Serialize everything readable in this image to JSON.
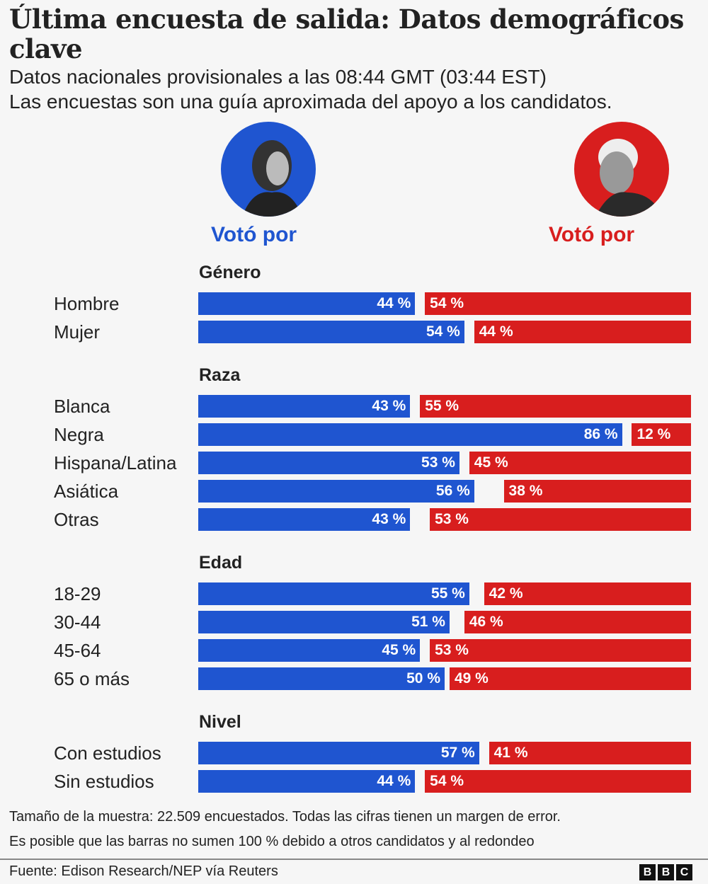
{
  "header": {
    "title": "Última encuesta de salida: Datos demográficos clave",
    "subtitle_1": "Datos nacionales provisionales a las 08:44 GMT (03:44 EST)",
    "subtitle_2": "Las encuestas son una guía aproximada del apoyo a los candidatos."
  },
  "candidates": {
    "left": {
      "label": "Votó por",
      "color": "#1f55d0",
      "portrait": "harris-portrait"
    },
    "right": {
      "label": "Votó por",
      "color": "#d81e1e",
      "portrait": "trump-portrait"
    }
  },
  "chart_data": {
    "type": "bar",
    "orientation": "horizontal-diverging",
    "xlim": [
      0,
      100
    ],
    "unit": "%",
    "groups": [
      {
        "title": "Género",
        "categories": [
          "Hombre",
          "Mujer"
        ],
        "left": [
          44,
          54
        ],
        "right": [
          54,
          44
        ]
      },
      {
        "title": "Raza",
        "categories": [
          "Blanca",
          "Negra",
          "Hispana/Latina",
          "Asiática",
          "Otras"
        ],
        "left": [
          43,
          86,
          53,
          56,
          43
        ],
        "right": [
          55,
          12,
          45,
          38,
          53
        ]
      },
      {
        "title": "Edad",
        "categories": [
          "18-29",
          "30-44",
          "45-64",
          "65 o más"
        ],
        "left": [
          55,
          51,
          45,
          50
        ],
        "right": [
          42,
          46,
          53,
          49
        ]
      },
      {
        "title": "Nivel",
        "categories": [
          "Con estudios",
          "Sin estudios"
        ],
        "left": [
          57,
          44
        ],
        "right": [
          41,
          54
        ]
      }
    ]
  },
  "footer": {
    "note_1": "Tamaño de la muestra: 22.509 encuestados. Todas las cifras tienen un margen de error.",
    "note_2": "Es posible que las barras no sumen 100 % debido a otros candidatos y al redondeo",
    "source": "Fuente: Edison Research/NEP vía Reuters",
    "logo": [
      "B",
      "B",
      "C"
    ]
  }
}
